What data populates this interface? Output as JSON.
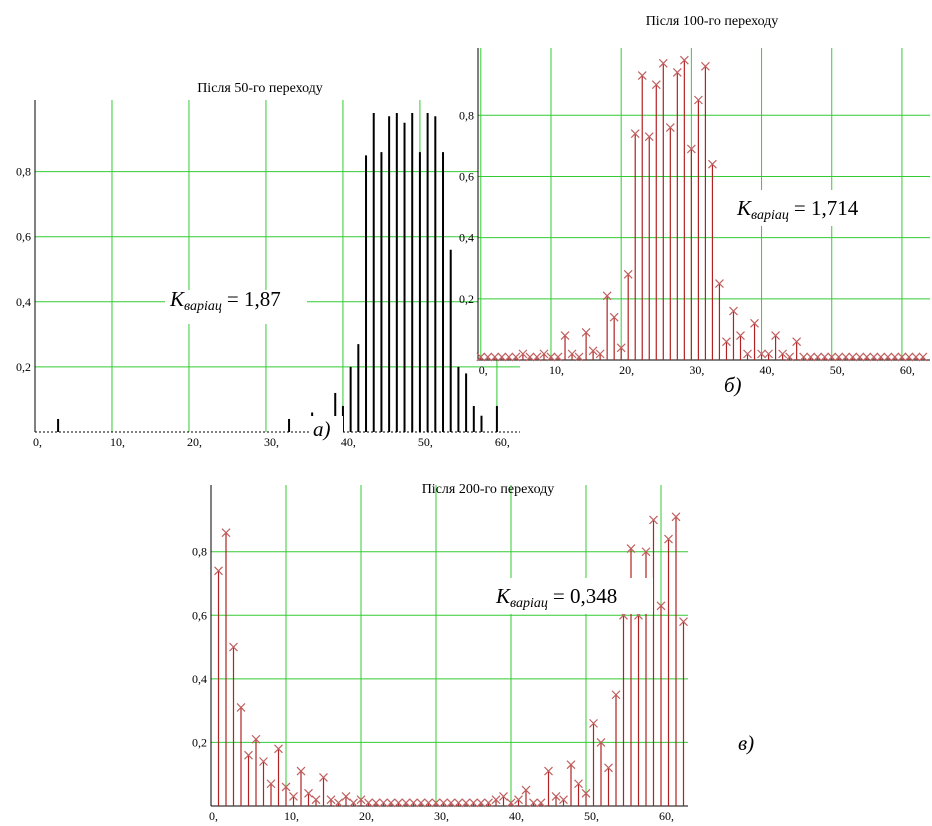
{
  "chart_data": [
    {
      "type": "stem",
      "title": "Після 50-го переходу",
      "color": "#000000",
      "marker": "none",
      "grid": true,
      "grid_color": "#33cc33",
      "annotation": {
        "symbol": "K",
        "subscript": "варіац",
        "value": "= 1,87"
      },
      "panel_label": "а)",
      "x": [
        0,
        1,
        2,
        3,
        4,
        5,
        6,
        7,
        8,
        9,
        10,
        11,
        12,
        13,
        14,
        15,
        16,
        17,
        18,
        19,
        20,
        21,
        22,
        23,
        24,
        25,
        26,
        27,
        28,
        29,
        30,
        31,
        32,
        33,
        34,
        35,
        36,
        37,
        38,
        39,
        40,
        41,
        42,
        43,
        44,
        45,
        46,
        47,
        48,
        49,
        50,
        51,
        52,
        53,
        54,
        55,
        56,
        57,
        58,
        59,
        60,
        61,
        62
      ],
      "values": [
        0,
        0,
        0,
        0.04,
        0,
        0,
        0,
        0,
        0,
        0,
        0,
        0,
        0,
        0,
        0,
        0,
        0,
        0,
        0,
        0,
        0,
        0,
        0,
        0,
        0,
        0,
        0,
        0,
        0,
        0,
        0,
        0,
        0,
        0.04,
        0,
        0,
        0.06,
        0,
        0,
        0.12,
        0.08,
        0.2,
        0.27,
        0.85,
        0.98,
        0.86,
        0.97,
        0.98,
        0.95,
        0.98,
        0.86,
        0.98,
        0.97,
        0.86,
        0.56,
        0.2,
        0.18,
        0.08,
        0.05,
        0,
        0.08,
        0,
        0
      ],
      "xlim": [
        0,
        63
      ],
      "ylim": [
        0,
        1.02
      ],
      "xticks": [
        {
          "value": 0,
          "label": "0,"
        },
        {
          "value": 10,
          "label": "10,"
        },
        {
          "value": 20,
          "label": "20,"
        },
        {
          "value": 30,
          "label": "30,"
        },
        {
          "value": 40,
          "label": "40,"
        },
        {
          "value": 50,
          "label": "50,"
        },
        {
          "value": 60,
          "label": "60,"
        }
      ],
      "yticks": [
        {
          "value": 0.2,
          "label": "0,2"
        },
        {
          "value": 0.4,
          "label": "0,4"
        },
        {
          "value": 0.6,
          "label": "0,6"
        },
        {
          "value": 0.8,
          "label": "0,8"
        }
      ]
    },
    {
      "type": "stem",
      "title": "Після 100-го переходу",
      "color": "#b22222",
      "marker": "x",
      "grid": true,
      "grid_color": "#33cc33",
      "annotation": {
        "symbol": "K",
        "subscript": "варіац",
        "value": "= 1,714"
      },
      "panel_label": "б)",
      "x": [
        0,
        1,
        2,
        3,
        4,
        5,
        6,
        7,
        8,
        9,
        10,
        11,
        12,
        13,
        14,
        15,
        16,
        17,
        18,
        19,
        20,
        21,
        22,
        23,
        24,
        25,
        26,
        27,
        28,
        29,
        30,
        31,
        32,
        33,
        34,
        35,
        36,
        37,
        38,
        39,
        40,
        41,
        42,
        43,
        44,
        45,
        46,
        47,
        48,
        49,
        50,
        51,
        52,
        53,
        54,
        55,
        56,
        57,
        58,
        59,
        60,
        61,
        62,
        63
      ],
      "values": [
        0.01,
        0.01,
        0.01,
        0.01,
        0.01,
        0.01,
        0.02,
        0.01,
        0.01,
        0.02,
        0.01,
        0.01,
        0.08,
        0.02,
        0.01,
        0.09,
        0.03,
        0.02,
        0.21,
        0.14,
        0.04,
        0.28,
        0.74,
        0.93,
        0.73,
        0.9,
        0.97,
        0.76,
        0.94,
        0.98,
        0.69,
        0.85,
        0.96,
        0.64,
        0.25,
        0.06,
        0.16,
        0.08,
        0.02,
        0.12,
        0.02,
        0.02,
        0.08,
        0.02,
        0.01,
        0.06,
        0.01,
        0.01,
        0.01,
        0.01,
        0.01,
        0.01,
        0.01,
        0.01,
        0.01,
        0.01,
        0.01,
        0.01,
        0.01,
        0.01,
        0.01,
        0.01,
        0.01,
        0.01
      ],
      "xlim": [
        -0.4,
        64
      ],
      "ylim": [
        0,
        1.02
      ],
      "xticks": [
        {
          "value": 0,
          "label": "0,"
        },
        {
          "value": 10,
          "label": "10,"
        },
        {
          "value": 20,
          "label": "20,"
        },
        {
          "value": 30,
          "label": "30,"
        },
        {
          "value": 40,
          "label": "40,"
        },
        {
          "value": 50,
          "label": "50,"
        },
        {
          "value": 60,
          "label": "60,"
        }
      ],
      "yticks": [
        {
          "value": 0.2,
          "label": "0,2"
        },
        {
          "value": 0.4,
          "label": "0,4"
        },
        {
          "value": 0.6,
          "label": "0,6"
        },
        {
          "value": 0.8,
          "label": "0,8"
        }
      ]
    },
    {
      "type": "stem",
      "title": "Після 200-го переходу",
      "color": "#b22222",
      "marker": "x",
      "grid": true,
      "grid_color": "#33cc33",
      "annotation": {
        "symbol": "K",
        "subscript": "варіац",
        "value": "= 0,348"
      },
      "panel_label": "в)",
      "x": [
        1,
        2,
        3,
        4,
        5,
        6,
        7,
        8,
        9,
        10,
        11,
        12,
        13,
        14,
        15,
        16,
        17,
        18,
        19,
        20,
        21,
        22,
        23,
        24,
        25,
        26,
        27,
        28,
        29,
        30,
        31,
        32,
        33,
        34,
        35,
        36,
        37,
        38,
        39,
        40,
        41,
        42,
        43,
        44,
        45,
        46,
        47,
        48,
        49,
        50,
        51,
        52,
        53,
        54,
        55,
        56,
        57,
        58,
        59,
        60,
        61,
        62,
        63
      ],
      "values": [
        0.74,
        0.86,
        0.5,
        0.31,
        0.16,
        0.21,
        0.14,
        0.07,
        0.18,
        0.06,
        0.03,
        0.11,
        0.04,
        0.02,
        0.09,
        0.02,
        0.01,
        0.03,
        0.01,
        0.02,
        0.01,
        0.01,
        0.01,
        0.01,
        0.01,
        0.01,
        0.01,
        0.01,
        0.01,
        0.01,
        0.01,
        0.01,
        0.01,
        0.01,
        0.01,
        0.01,
        0.01,
        0.02,
        0.03,
        0.01,
        0.02,
        0.05,
        0.01,
        0.01,
        0.11,
        0.03,
        0.02,
        0.13,
        0.07,
        0.04,
        0.26,
        0.2,
        0.12,
        0.35,
        0.6,
        0.81,
        0.6,
        0.8,
        0.9,
        0.63,
        0.84,
        0.91,
        0.58
      ],
      "xlim": [
        0,
        63.6
      ],
      "ylim": [
        0,
        1.01
      ],
      "xticks": [
        {
          "value": 0,
          "label": "0,"
        },
        {
          "value": 10,
          "label": "10,"
        },
        {
          "value": 20,
          "label": "20,"
        },
        {
          "value": 30,
          "label": "30,"
        },
        {
          "value": 40,
          "label": "40,"
        },
        {
          "value": 50,
          "label": "50,"
        },
        {
          "value": 60,
          "label": "60,"
        }
      ],
      "yticks": [
        {
          "value": 0.2,
          "label": "0,2"
        },
        {
          "value": 0.4,
          "label": "0,4"
        },
        {
          "value": 0.6,
          "label": "0,6"
        },
        {
          "value": 0.8,
          "label": "0,8"
        }
      ]
    }
  ]
}
